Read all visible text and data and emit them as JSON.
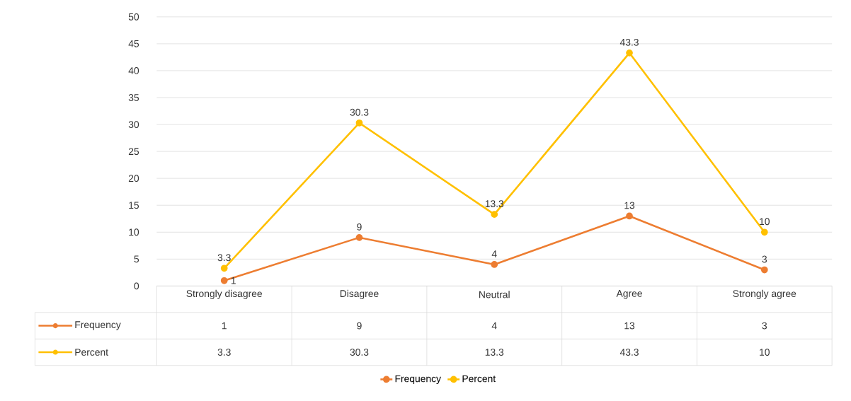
{
  "chart_data": {
    "type": "line",
    "categories": [
      "Strongly disagree",
      "Disagree",
      "Neutral",
      "Agree",
      "Strongly agree"
    ],
    "series": [
      {
        "name": "Frequency",
        "color": "#ed7d31",
        "values": [
          1,
          9,
          4,
          13,
          3
        ],
        "value_labels": [
          "1",
          "9",
          "4",
          "13",
          "3"
        ]
      },
      {
        "name": "Percent",
        "color": "#ffc000",
        "values": [
          3.3,
          30.3,
          13.3,
          43.3,
          10
        ],
        "value_labels": [
          "3.3",
          "30.3",
          "13.3",
          "43.3",
          "10"
        ]
      }
    ],
    "ylim": [
      0,
      50
    ],
    "yticks": [
      0,
      5,
      10,
      15,
      20,
      25,
      30,
      35,
      40,
      45,
      50
    ],
    "grid": "y",
    "legend": "bottom",
    "marker": "circle",
    "data_labels": true
  }
}
